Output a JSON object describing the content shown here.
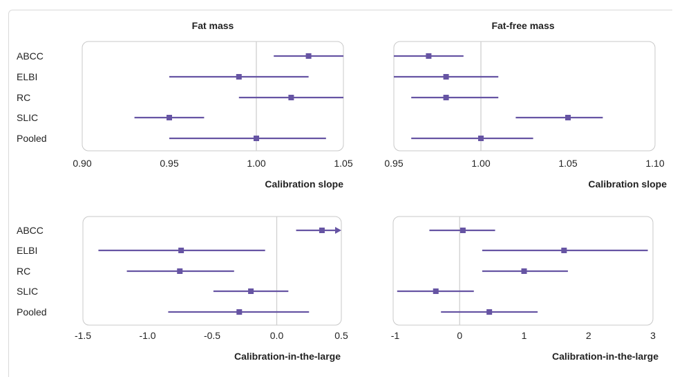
{
  "colors": {
    "mark": "#6654a3",
    "ref_line": "#d0d0d0",
    "panel_border": "#c8c8c8",
    "text": "#222222"
  },
  "chart_data": [
    {
      "type": "forest",
      "title": "Fat mass",
      "xlabel": "Calibration slope",
      "xlim": [
        0.9,
        1.05
      ],
      "xticks": [
        "0.90",
        "0.95",
        "1.00",
        "1.05"
      ],
      "ref": 1.0,
      "categories": [
        "ABCC",
        "ELBI",
        "RC",
        "SLIC",
        "Pooled"
      ],
      "estimates": [
        1.03,
        0.99,
        1.02,
        0.95,
        1.0
      ],
      "lower": [
        1.01,
        0.95,
        0.99,
        0.93,
        0.95
      ],
      "upper": [
        1.05,
        1.03,
        1.05,
        0.97,
        1.04
      ]
    },
    {
      "type": "forest",
      "title": "Fat-free mass",
      "xlabel": "Calibration slope",
      "xlim": [
        0.95,
        1.1
      ],
      "xticks": [
        "0.95",
        "1.00",
        "1.05",
        "1.10"
      ],
      "ref": 1.0,
      "categories": [
        "ABCC",
        "ELBI",
        "RC",
        "SLIC",
        "Pooled"
      ],
      "estimates": [
        0.97,
        0.98,
        0.98,
        1.05,
        1.0
      ],
      "lower": [
        0.95,
        0.95,
        0.96,
        1.02,
        0.96
      ],
      "upper": [
        0.99,
        1.01,
        1.01,
        1.07,
        1.03
      ]
    },
    {
      "type": "forest",
      "title": "",
      "xlabel": "Calibration-in-the-large",
      "xlim": [
        -1.5,
        0.5
      ],
      "xticks": [
        "-1.5",
        "-1.0",
        "-0.5",
        "0.0",
        "0.5"
      ],
      "ref": 0.0,
      "categories": [
        "ABCC",
        "ELBI",
        "RC",
        "SLIC",
        "Pooled"
      ],
      "estimates": [
        0.35,
        -0.74,
        -0.75,
        -0.2,
        -0.29
      ],
      "lower": [
        0.15,
        -1.38,
        -1.16,
        -0.49,
        -0.84
      ],
      "upper": [
        0.5,
        -0.09,
        -0.33,
        0.09,
        0.25
      ],
      "arrow_right": [
        true,
        false,
        false,
        false,
        false
      ]
    },
    {
      "type": "forest",
      "title": "",
      "xlabel": "Calibration-in-the-large",
      "xlim": [
        -1,
        3
      ],
      "xticks": [
        "-1",
        "0",
        "1",
        "2",
        "3"
      ],
      "ref": 0,
      "categories": [
        "ABCC",
        "ELBI",
        "RC",
        "SLIC",
        "Pooled"
      ],
      "estimates": [
        0.05,
        1.62,
        1.0,
        -0.37,
        0.46
      ],
      "lower": [
        -0.47,
        0.35,
        0.35,
        -0.97,
        -0.29
      ],
      "upper": [
        0.55,
        2.92,
        1.68,
        0.22,
        1.21
      ]
    }
  ]
}
